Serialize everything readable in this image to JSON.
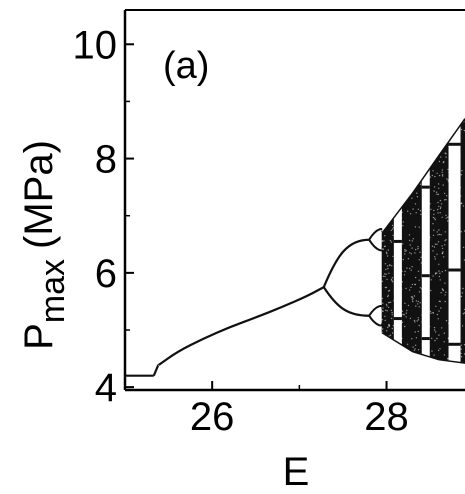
{
  "chart_data": {
    "type": "scatter",
    "title": "",
    "panel_label": "(a)",
    "xlabel": "E",
    "ylabel_main": "P",
    "ylabel_sub": "max",
    "ylabel_unit": "(MPa)",
    "xlim": [
      25.0,
      28.9
    ],
    "ylim": [
      3.95,
      10.6
    ],
    "x_ticks": [
      26,
      28
    ],
    "x_tick_labels": [
      "26",
      "28"
    ],
    "y_ticks": [
      4,
      6,
      8,
      10
    ],
    "y_tick_labels": [
      "4",
      "6",
      "8",
      "10"
    ],
    "grid": false,
    "legend": "none",
    "colors": {
      "axis": "#000000",
      "data": "#111111",
      "background": "#ffffff"
    },
    "series": [
      {
        "values_note": "",
        "period1_flat": {
          "x": [
            25.0,
            25.33
          ],
          "y": [
            4.2,
            4.2
          ]
        },
        "period1_jump": {
          "x": [
            25.33,
            25.38
          ],
          "y": [
            4.2,
            4.38
          ]
        },
        "period1_branch": {
          "x": [
            25.38,
            25.6,
            25.9,
            26.2,
            26.5,
            26.8,
            27.1,
            27.28
          ],
          "y": [
            4.38,
            4.62,
            4.85,
            5.05,
            5.22,
            5.4,
            5.6,
            5.75
          ]
        },
        "bifurcation_points": [
          {
            "x": 27.28,
            "y": 5.75
          },
          {
            "x": 27.8,
            "y": 6.58
          },
          {
            "x": 27.8,
            "y": 5.25
          }
        ],
        "chaos_region": {
          "x_start": 27.95,
          "x_end": 28.9,
          "upper": {
            "x": [
              27.95,
              28.3,
              28.6,
              28.9
            ],
            "y": [
              6.7,
              7.4,
              8.05,
              8.7
            ]
          },
          "lower": {
            "x": [
              27.95,
              28.3,
              28.6,
              28.9
            ],
            "y": [
              4.95,
              4.62,
              4.48,
              4.42
            ]
          }
        },
        "periodic_windows": [
          {
            "x": 28.13,
            "bands": [
              6.55,
              5.2
            ]
          },
          {
            "x": 28.45,
            "bands": [
              7.5,
              5.95,
              4.85
            ]
          },
          {
            "x": 28.78,
            "bands": [
              8.25,
              6.05,
              4.75
            ]
          }
        ]
      }
    ]
  }
}
